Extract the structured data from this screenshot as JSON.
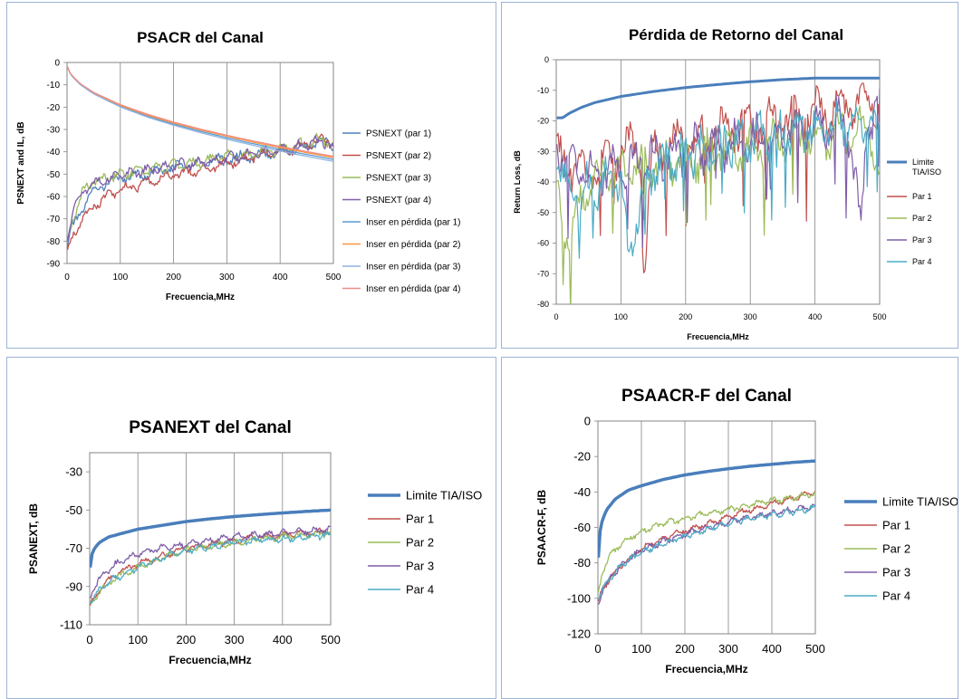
{
  "colors": {
    "limit": "#4a7ebb",
    "p1": "#c0504d",
    "p2": "#9bbb59",
    "p3": "#7f5ea8",
    "p4": "#4bacc6",
    "il_blue": "#5b9bd5",
    "il_red": "#e3655b",
    "il_orange": "#f79646",
    "il_lblue": "#8fb4e0",
    "il_salmon": "#f08c82",
    "grid": "#868686",
    "panel_border": "#9db3d6"
  },
  "chart_data": [
    {
      "type": "line",
      "title": "PSACR del Canal",
      "xlabel": "Frecuencia,MHz",
      "ylabel": "PSNEXT and IL, dB",
      "xlim": [
        0,
        500
      ],
      "ylim": [
        -90,
        0
      ],
      "xticks": [
        "0",
        "100",
        "200",
        "300",
        "400",
        "500"
      ],
      "yticks": [
        "0",
        "-10",
        "-20",
        "-30",
        "-40",
        "-50",
        "-60",
        "-70",
        "-80",
        "-90"
      ],
      "legend": "right",
      "grid": "vertical",
      "series": [
        {
          "name": "PSNEXT (par 1)",
          "x": [
            1,
            10,
            30,
            50,
            75,
            100,
            150,
            200,
            250,
            300,
            350,
            400,
            450,
            480,
            500
          ],
          "y": [
            -82,
            -74,
            -65,
            -57,
            -54,
            -52,
            -50,
            -47,
            -45,
            -43,
            -42,
            -40,
            -38,
            -35,
            -38
          ]
        },
        {
          "name": "PSNEXT (par 2)",
          "x": [
            1,
            10,
            30,
            50,
            75,
            100,
            150,
            200,
            250,
            300,
            350,
            400,
            450,
            480,
            500
          ],
          "y": [
            -85,
            -78,
            -70,
            -64,
            -60,
            -57,
            -54,
            -50,
            -48,
            -45,
            -42,
            -40,
            -37,
            -34,
            -36
          ]
        },
        {
          "name": "PSNEXT (par 3)",
          "x": [
            1,
            10,
            30,
            50,
            75,
            100,
            150,
            200,
            250,
            300,
            350,
            400,
            450,
            480,
            500
          ],
          "y": [
            -80,
            -70,
            -58,
            -53,
            -52,
            -50,
            -48,
            -46,
            -45,
            -42,
            -41,
            -39,
            -36,
            -34,
            -37
          ]
        },
        {
          "name": "PSNEXT (par 4)",
          "x": [
            1,
            10,
            30,
            50,
            75,
            100,
            150,
            200,
            250,
            300,
            350,
            400,
            450,
            480,
            500
          ],
          "y": [
            -80,
            -66,
            -58,
            -54,
            -52,
            -51,
            -48,
            -46,
            -45,
            -43,
            -41,
            -39,
            -37,
            -35,
            -39
          ]
        },
        {
          "name": "Inser en pérdida (par 1)",
          "x": [
            1,
            5,
            10,
            25,
            50,
            100,
            150,
            200,
            250,
            300,
            350,
            400,
            450,
            500
          ],
          "y": [
            -2,
            -4.5,
            -6.3,
            -9.9,
            -13.9,
            -19.6,
            -24,
            -27.6,
            -30.8,
            -33.7,
            -36.4,
            -38.9,
            -41.2,
            -43.4
          ]
        },
        {
          "name": "Inser en pérdida (par 2)",
          "x": [
            1,
            5,
            10,
            25,
            50,
            100,
            150,
            200,
            250,
            300,
            350,
            400,
            450,
            500
          ],
          "y": [
            -2,
            -4.4,
            -6.1,
            -9.7,
            -13.6,
            -19.2,
            -23.5,
            -27.1,
            -30.2,
            -33,
            -35.7,
            -38.1,
            -40.4,
            -42.6
          ]
        },
        {
          "name": "Inser en pérdida (par 3)",
          "x": [
            1,
            5,
            10,
            25,
            50,
            100,
            150,
            200,
            250,
            300,
            350,
            400,
            450,
            500
          ],
          "y": [
            -2,
            -4.5,
            -6.4,
            -10,
            -14.1,
            -19.9,
            -24.4,
            -28.1,
            -31.4,
            -34.4,
            -37.1,
            -39.7,
            -42,
            -44.3
          ]
        },
        {
          "name": "Inser en pérdida (par 4)",
          "x": [
            1,
            5,
            10,
            25,
            50,
            100,
            150,
            200,
            250,
            300,
            350,
            400,
            450,
            500
          ],
          "y": [
            -2,
            -4.3,
            -6,
            -9.5,
            -13.4,
            -18.9,
            -23.1,
            -26.7,
            -29.8,
            -32.6,
            -35.2,
            -37.6,
            -39.9,
            -42
          ]
        }
      ]
    },
    {
      "type": "line",
      "title": "Pérdida de Retorno del Canal",
      "xlabel": "Frecuencia,MHz",
      "ylabel": "Return Loss, dB",
      "xlim": [
        0,
        500
      ],
      "ylim": [
        -80,
        0
      ],
      "xticks": [
        "0",
        "100",
        "200",
        "300",
        "400",
        "500"
      ],
      "yticks": [
        "0",
        "-10",
        "-20",
        "-30",
        "-40",
        "-50",
        "-60",
        "-70",
        "-80"
      ],
      "legend": "right",
      "grid": "vertical",
      "series": [
        {
          "name": "Limite TIA/ISO",
          "x": [
            1,
            10,
            20,
            40,
            60,
            100,
            150,
            200,
            250,
            300,
            350,
            400,
            450,
            500
          ],
          "y": [
            -19,
            -19,
            -17.5,
            -15.5,
            -14,
            -12,
            -10.4,
            -9.1,
            -8.1,
            -7.2,
            -6.5,
            -6,
            -6,
            -6
          ]
        },
        {
          "name": "Par 1",
          "x": [
            1,
            20,
            50,
            80,
            100,
            130,
            135,
            150,
            200,
            250,
            300,
            350,
            400,
            450,
            480,
            500
          ],
          "y": [
            -30,
            -35,
            -38,
            -33,
            -30,
            -28,
            -71,
            -28,
            -27,
            -24,
            -22,
            -20,
            -18,
            -16,
            -14,
            -15
          ]
        },
        {
          "name": "Par 2",
          "x": [
            1,
            20,
            40,
            70,
            100,
            150,
            200,
            250,
            300,
            350,
            400,
            450,
            480,
            500
          ],
          "y": [
            -40,
            -60,
            -45,
            -38,
            -36,
            -35,
            -33,
            -30,
            -28,
            -26,
            -25,
            -24,
            -22,
            -38
          ]
        },
        {
          "name": "Par 3",
          "x": [
            1,
            20,
            50,
            80,
            100,
            150,
            200,
            250,
            300,
            350,
            400,
            450,
            470,
            480,
            500
          ],
          "y": [
            -28,
            -34,
            -38,
            -36,
            -35,
            -32,
            -30,
            -28,
            -27,
            -24,
            -22,
            -20,
            -55,
            -22,
            -18
          ]
        },
        {
          "name": "Par 4",
          "x": [
            1,
            20,
            50,
            100,
            110,
            150,
            200,
            250,
            300,
            350,
            400,
            450,
            500
          ],
          "y": [
            -30,
            -45,
            -42,
            -38,
            -63,
            -35,
            -31,
            -28,
            -26,
            -24,
            -22,
            -21,
            -20
          ]
        }
      ]
    },
    {
      "type": "line",
      "title": "PSANEXT del Canal",
      "xlabel": "Frecuencia,MHz",
      "ylabel": "PSANEXT, dB",
      "xlim": [
        0,
        500
      ],
      "ylim": [
        -110,
        -20
      ],
      "xticks": [
        "0",
        "100",
        "200",
        "300",
        "400",
        "500"
      ],
      "yticks": [
        "-30",
        "-50",
        "-70",
        "-90",
        "-110"
      ],
      "legend": "right",
      "grid": "vertical",
      "series": [
        {
          "name": "Limite TIA/ISO",
          "x": [
            1,
            5,
            10,
            20,
            40,
            70,
            100,
            150,
            200,
            250,
            300,
            350,
            400,
            450,
            500
          ],
          "y": [
            -80,
            -73,
            -70,
            -67,
            -64,
            -62,
            -60,
            -58,
            -56,
            -54.6,
            -53.4,
            -52.4,
            -51.5,
            -50.7,
            -50
          ]
        },
        {
          "name": "Par 1",
          "x": [
            1,
            20,
            50,
            100,
            150,
            200,
            250,
            300,
            350,
            400,
            450,
            500
          ],
          "y": [
            -100,
            -92,
            -84,
            -78,
            -74,
            -70,
            -68,
            -66,
            -64,
            -63,
            -62,
            -61
          ]
        },
        {
          "name": "Par 2",
          "x": [
            1,
            20,
            50,
            100,
            150,
            200,
            250,
            300,
            350,
            400,
            450,
            500
          ],
          "y": [
            -100,
            -93,
            -86,
            -80,
            -75,
            -71,
            -69,
            -67,
            -65,
            -64,
            -63,
            -62
          ]
        },
        {
          "name": "Par 3",
          "x": [
            1,
            20,
            50,
            100,
            150,
            200,
            250,
            300,
            350,
            400,
            450,
            500
          ],
          "y": [
            -95,
            -86,
            -79,
            -73,
            -70,
            -68,
            -66,
            -64,
            -63,
            -62,
            -61,
            -60
          ]
        },
        {
          "name": "Par 4",
          "x": [
            1,
            20,
            50,
            100,
            150,
            200,
            250,
            300,
            350,
            400,
            450,
            500
          ],
          "y": [
            -98,
            -92,
            -86,
            -80,
            -75,
            -71,
            -69,
            -67,
            -66,
            -65,
            -64,
            -63
          ]
        }
      ]
    },
    {
      "type": "line",
      "title": "PSAACR-F del Canal",
      "xlabel": "Frecuencia,MHz",
      "ylabel": "PSAACR-F, dB",
      "xlim": [
        0,
        500
      ],
      "ylim": [
        -120,
        0
      ],
      "xticks": [
        "0",
        "100",
        "200",
        "300",
        "400",
        "500"
      ],
      "yticks": [
        "0",
        "-20",
        "-40",
        "-60",
        "-80",
        "-100",
        "-120"
      ],
      "legend": "right",
      "grid": "vertical",
      "series": [
        {
          "name": "Limite TIA/ISO",
          "x": [
            1,
            3,
            5,
            10,
            20,
            40,
            70,
            100,
            150,
            200,
            250,
            300,
            350,
            400,
            450,
            500
          ],
          "y": [
            -77,
            -67,
            -62,
            -56,
            -50,
            -44,
            -39,
            -36.5,
            -33,
            -30.4,
            -28.5,
            -26.9,
            -25.5,
            -24.4,
            -23.3,
            -22.5
          ]
        },
        {
          "name": "Par 1",
          "x": [
            1,
            10,
            30,
            60,
            100,
            150,
            200,
            250,
            300,
            350,
            400,
            450,
            500
          ],
          "y": [
            -102,
            -95,
            -88,
            -80,
            -72,
            -66,
            -62,
            -58,
            -54,
            -50,
            -47,
            -43,
            -40
          ]
        },
        {
          "name": "Par 2",
          "x": [
            1,
            10,
            30,
            60,
            100,
            150,
            200,
            250,
            300,
            350,
            400,
            450,
            500
          ],
          "y": [
            -98,
            -85,
            -75,
            -68,
            -62,
            -58,
            -55,
            -52,
            -50,
            -47,
            -45,
            -43,
            -41
          ]
        },
        {
          "name": "Par 3",
          "x": [
            1,
            10,
            30,
            60,
            100,
            150,
            200,
            250,
            300,
            350,
            400,
            450,
            500
          ],
          "y": [
            -104,
            -96,
            -88,
            -80,
            -73,
            -68,
            -64,
            -60,
            -57,
            -54,
            -52,
            -50,
            -48
          ]
        },
        {
          "name": "Par 4",
          "x": [
            1,
            10,
            30,
            60,
            100,
            150,
            200,
            250,
            300,
            350,
            400,
            450,
            500
          ],
          "y": [
            -100,
            -95,
            -88,
            -80,
            -74,
            -69,
            -65,
            -61,
            -58,
            -55,
            -53,
            -51,
            -49
          ]
        }
      ]
    }
  ]
}
